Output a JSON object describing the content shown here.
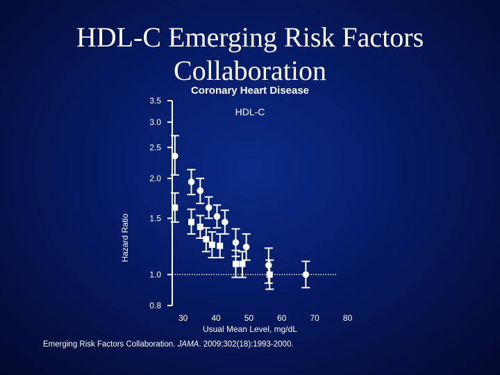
{
  "slide": {
    "title_line1": "HDL-C Emerging Risk Factors",
    "title_line2": "Collaboration",
    "citation_pre": "Emerging Risk Factors Collaboration. ",
    "citation_journal": "JAMA",
    "citation_post": ". 2009;302(18):1993-2000."
  },
  "chart_data": {
    "type": "scatter",
    "title": "Coronary Heart Disease",
    "subtitle": "HDL-C",
    "xlabel": "Usual Mean Level, mg/dL",
    "ylabel": "Hazard Ratio",
    "xlim": [
      25,
      82
    ],
    "ylim": [
      0.8,
      3.5
    ],
    "y_scale": "log",
    "x_ticks": [
      30,
      40,
      50,
      60,
      70,
      80
    ],
    "y_ticks": [
      0.8,
      1.0,
      1.5,
      2.0,
      2.5,
      3.0,
      3.5
    ],
    "y_tick_labels": [
      "0.8",
      "1.0",
      "1.5",
      "2.0",
      "2.5",
      "3.0",
      "3.5"
    ],
    "grid": false,
    "reference_line": 1.0,
    "series": [
      {
        "marker": "circle",
        "points": [
          {
            "x": 27.5,
            "y": 2.35,
            "lo": 2.05,
            "hi": 2.72
          },
          {
            "x": 32.5,
            "y": 1.95,
            "lo": 1.78,
            "hi": 2.13
          },
          {
            "x": 35.2,
            "y": 1.83,
            "lo": 1.67,
            "hi": 2.0
          },
          {
            "x": 37.8,
            "y": 1.62,
            "lo": 1.5,
            "hi": 1.75
          },
          {
            "x": 40.3,
            "y": 1.52,
            "lo": 1.4,
            "hi": 1.65
          },
          {
            "x": 42.7,
            "y": 1.46,
            "lo": 1.34,
            "hi": 1.59
          },
          {
            "x": 46.0,
            "y": 1.26,
            "lo": 1.14,
            "hi": 1.39
          },
          {
            "x": 49.2,
            "y": 1.22,
            "lo": 1.11,
            "hi": 1.34
          },
          {
            "x": 56.0,
            "y": 1.07,
            "lo": 0.94,
            "hi": 1.21
          },
          {
            "x": 67.3,
            "y": 1.0,
            "lo": 0.91,
            "hi": 1.1
          }
        ]
      },
      {
        "marker": "square",
        "points": [
          {
            "x": 27.5,
            "y": 1.62,
            "lo": 1.46,
            "hi": 1.8
          },
          {
            "x": 32.5,
            "y": 1.46,
            "lo": 1.34,
            "hi": 1.6
          },
          {
            "x": 35.2,
            "y": 1.41,
            "lo": 1.3,
            "hi": 1.53
          },
          {
            "x": 37.0,
            "y": 1.29,
            "lo": 1.18,
            "hi": 1.4
          },
          {
            "x": 38.8,
            "y": 1.24,
            "lo": 1.13,
            "hi": 1.36
          },
          {
            "x": 41.2,
            "y": 1.23,
            "lo": 1.13,
            "hi": 1.34
          },
          {
            "x": 46.0,
            "y": 1.08,
            "lo": 0.98,
            "hi": 1.19
          },
          {
            "x": 48.0,
            "y": 1.08,
            "lo": 0.98,
            "hi": 1.18
          },
          {
            "x": 56.3,
            "y": 1.0,
            "lo": 0.9,
            "hi": 1.11
          }
        ]
      }
    ]
  }
}
